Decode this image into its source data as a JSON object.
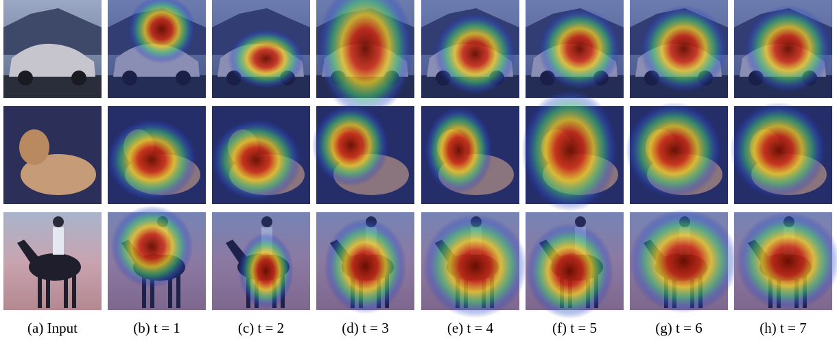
{
  "figure": {
    "captions": [
      "(a) Input",
      "(b) t = 1",
      "(c) t = 2",
      "(d) t = 3",
      "(e) t = 4",
      "(f) t = 5",
      "(g) t = 6",
      "(h) t = 7"
    ]
  }
}
